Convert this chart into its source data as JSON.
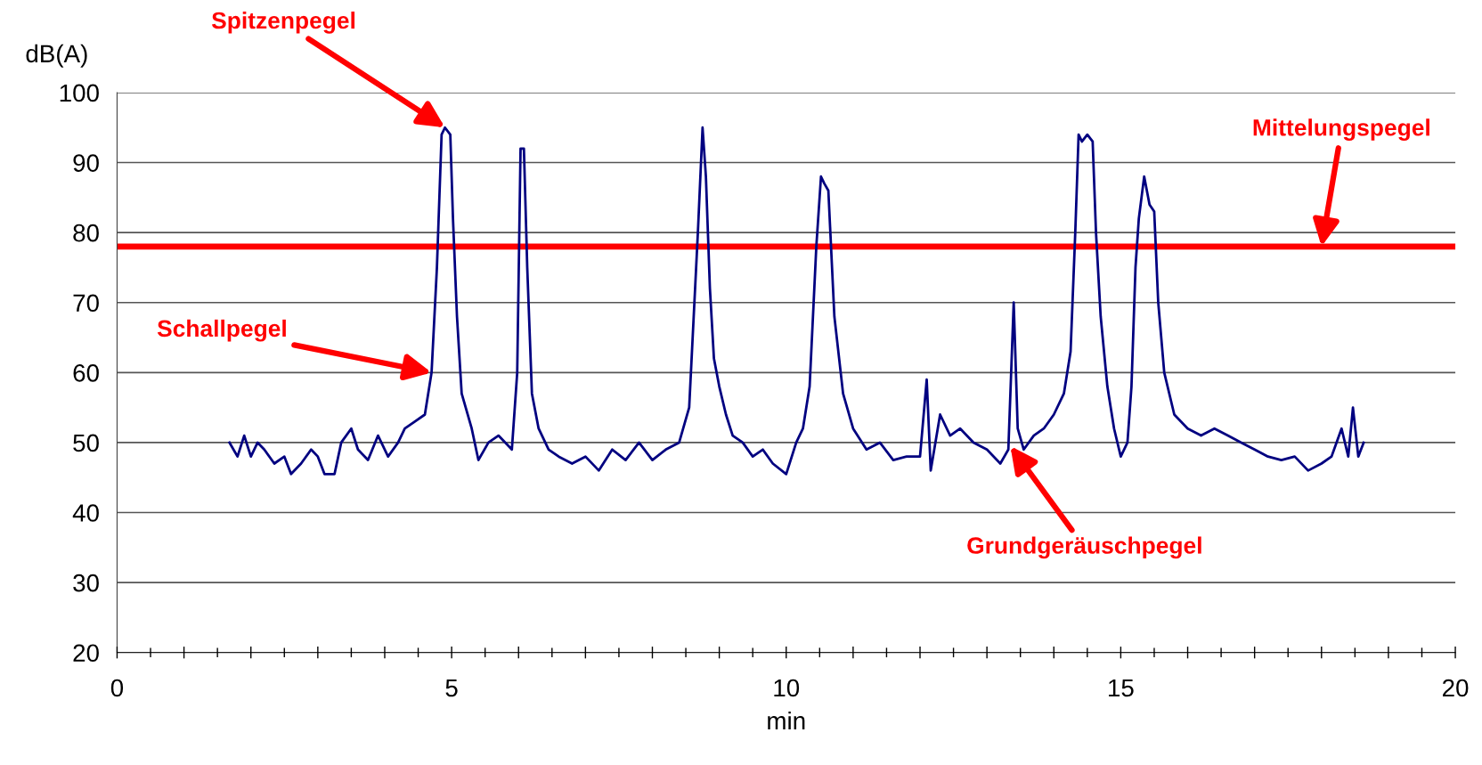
{
  "chart_data": {
    "type": "line",
    "xlabel": "min",
    "ylabel": "dB(A)",
    "xlim": [
      0,
      20
    ],
    "ylim": [
      20,
      100
    ],
    "xticks": [
      0,
      {
        "value": 0.5,
        "label": null
      },
      {
        "value": 1,
        "label": null
      },
      {
        "value": 1.5,
        "label": null
      },
      {
        "value": 2,
        "label": null
      },
      {
        "value": 2.5,
        "label": null
      },
      {
        "value": 3,
        "label": null
      },
      {
        "value": 3.5,
        "label": null
      },
      {
        "value": 4,
        "label": null
      },
      {
        "value": 4.5,
        "label": null
      },
      5,
      {
        "value": 5.5,
        "label": null
      },
      {
        "value": 6,
        "label": null
      },
      {
        "value": 6.5,
        "label": null
      },
      {
        "value": 7,
        "label": null
      },
      {
        "value": 7.5,
        "label": null
      },
      {
        "value": 8,
        "label": null
      },
      {
        "value": 8.5,
        "label": null
      },
      {
        "value": 9,
        "label": null
      },
      {
        "value": 9.5,
        "label": null
      },
      10,
      {
        "value": 10.5,
        "label": null
      },
      {
        "value": 11,
        "label": null
      },
      {
        "value": 11.5,
        "label": null
      },
      {
        "value": 12,
        "label": null
      },
      {
        "value": 12.5,
        "label": null
      },
      {
        "value": 13,
        "label": null
      },
      {
        "value": 13.5,
        "label": null
      },
      {
        "value": 14,
        "label": null
      },
      {
        "value": 14.5,
        "label": null
      },
      15,
      {
        "value": 15.5,
        "label": null
      },
      {
        "value": 16,
        "label": null
      },
      {
        "value": 16.5,
        "label": null
      },
      {
        "value": 17,
        "label": null
      },
      {
        "value": 17.5,
        "label": null
      },
      {
        "value": 18,
        "label": null
      },
      {
        "value": 18.5,
        "label": null
      },
      {
        "value": 19,
        "label": null
      },
      {
        "value": 19.5,
        "label": null
      },
      20
    ],
    "yticks": [
      20,
      30,
      40,
      50,
      60,
      70,
      80,
      90,
      100
    ],
    "grid": "y",
    "legend": false,
    "marker": "none",
    "line_style": "solid",
    "series": [
      {
        "color": "#000080",
        "x": [
          1.68,
          1.8,
          1.9,
          2.0,
          2.1,
          2.2,
          2.35,
          2.5,
          2.6,
          2.75,
          2.9,
          3.0,
          3.1,
          3.25,
          3.35,
          3.5,
          3.6,
          3.75,
          3.9,
          4.05,
          4.2,
          4.3,
          4.45,
          4.6,
          4.7,
          4.78,
          4.85,
          4.9,
          4.98,
          5.02,
          5.08,
          5.15,
          5.3,
          5.4,
          5.55,
          5.7,
          5.9,
          5.98,
          6.03,
          6.08,
          6.13,
          6.2,
          6.3,
          6.45,
          6.6,
          6.8,
          7.0,
          7.2,
          7.4,
          7.6,
          7.8,
          8.0,
          8.2,
          8.4,
          8.55,
          8.68,
          8.75,
          8.8,
          8.86,
          8.92,
          9.0,
          9.1,
          9.2,
          9.35,
          9.5,
          9.65,
          9.8,
          10.0,
          10.15,
          10.25,
          10.35,
          10.45,
          10.52,
          10.57,
          10.63,
          10.72,
          10.85,
          11.0,
          11.2,
          11.4,
          11.6,
          11.8,
          12.0,
          12.1,
          12.16,
          12.3,
          12.45,
          12.6,
          12.8,
          13.0,
          13.2,
          13.32,
          13.4,
          13.46,
          13.55,
          13.7,
          13.85,
          14.0,
          14.15,
          14.25,
          14.32,
          14.37,
          14.42,
          14.5,
          14.58,
          14.63,
          14.7,
          14.8,
          14.9,
          15.0,
          15.1,
          15.16,
          15.22,
          15.27,
          15.35,
          15.43,
          15.5,
          15.56,
          15.65,
          15.8,
          16.0,
          16.2,
          16.4,
          16.6,
          16.8,
          17.0,
          17.2,
          17.4,
          17.6,
          17.8,
          18.0,
          18.15,
          18.3,
          18.4,
          18.47,
          18.55,
          18.63
        ],
        "values": [
          50,
          48,
          51,
          48,
          50,
          49,
          47,
          48,
          45.5,
          47,
          49,
          48,
          45.5,
          45.5,
          50,
          52,
          49,
          47.5,
          51,
          48,
          50,
          52,
          53,
          54,
          60,
          75,
          94,
          95,
          94,
          82,
          68,
          57,
          52,
          47.5,
          50,
          51,
          49,
          60,
          92,
          92,
          75,
          57,
          52,
          49,
          48,
          47,
          48,
          46,
          49,
          47.5,
          50,
          47.5,
          49,
          50,
          55,
          80,
          95,
          88,
          72,
          62,
          58,
          54,
          51,
          50,
          48,
          49,
          47,
          45.5,
          50,
          52,
          58,
          78,
          88,
          87,
          86,
          68,
          57,
          52,
          49,
          50,
          47.5,
          48,
          48,
          59,
          46,
          54,
          51,
          52,
          50,
          49,
          47,
          49,
          70,
          52,
          49,
          51,
          52,
          54,
          57,
          63,
          80,
          94,
          93,
          94,
          93,
          80,
          68,
          58,
          52,
          48,
          50,
          58,
          75,
          82,
          88,
          84,
          83,
          70,
          60,
          54,
          52,
          51,
          52,
          51,
          50,
          49,
          48,
          47.5,
          48,
          46,
          47,
          48,
          52,
          48,
          55,
          48,
          50
        ]
      }
    ],
    "ref_lines": [
      {
        "axis": "y",
        "value": 78,
        "label": "Mittelungspegel",
        "color": "#ff0000",
        "line_style": "solid"
      }
    ],
    "annotations": [
      {
        "text": "Spitzenpegel",
        "x": 4.9,
        "y": 95
      },
      {
        "text": "Schallpegel",
        "x": 4.7,
        "y": 60
      },
      {
        "text": "Grundgeräuschpegel",
        "x": 13.35,
        "y": 49.5
      }
    ]
  }
}
